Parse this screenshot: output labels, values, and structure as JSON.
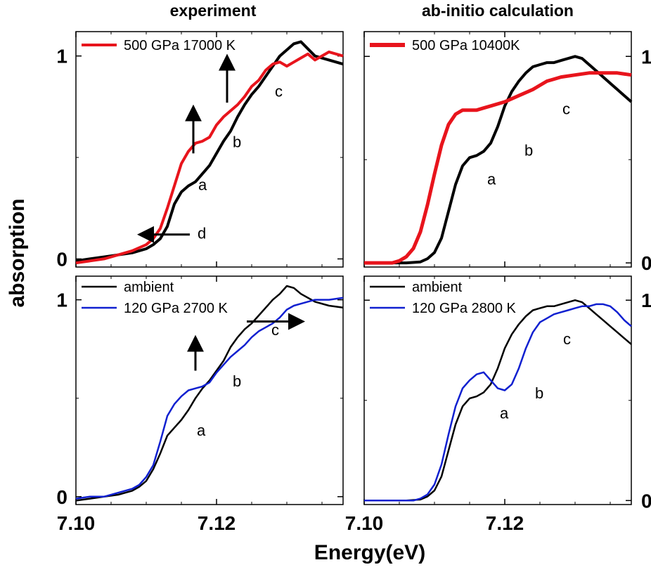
{
  "figure": {
    "col_titles": [
      "experiment",
      "ab-initio calculation"
    ],
    "ylabel": "absorption",
    "xlabel": "Energy(eV)",
    "x_ticks": [
      "7.10",
      "7.12"
    ],
    "y_ticks": [
      "0",
      "1"
    ]
  },
  "colors": {
    "black": "#000000",
    "red": "#e8141c",
    "blue": "#1020d0"
  },
  "chart_data": [
    {
      "type": "line",
      "panel": "top-left",
      "title": "experiment",
      "xlim": [
        7.1,
        7.138
      ],
      "ylim": [
        -0.04,
        1.12
      ],
      "legend": [
        "500 GPa 17000 K"
      ],
      "series": [
        {
          "name": "",
          "color": "#000000",
          "x": [
            7.1,
            7.102,
            7.104,
            7.106,
            7.108,
            7.11,
            7.111,
            7.112,
            7.113,
            7.114,
            7.115,
            7.116,
            7.117,
            7.118,
            7.119,
            7.12,
            7.121,
            7.122,
            7.123,
            7.124,
            7.125,
            7.126,
            7.127,
            7.128,
            7.129,
            7.13,
            7.131,
            7.132,
            7.134,
            7.136,
            7.138
          ],
          "y": [
            -0.01,
            0.0,
            0.01,
            0.02,
            0.03,
            0.05,
            0.07,
            0.1,
            0.16,
            0.27,
            0.33,
            0.36,
            0.38,
            0.42,
            0.46,
            0.52,
            0.58,
            0.63,
            0.7,
            0.76,
            0.81,
            0.85,
            0.9,
            0.95,
            1.0,
            1.03,
            1.06,
            1.07,
            1.0,
            0.98,
            0.96
          ]
        },
        {
          "name": "500 GPa 17000 K",
          "color": "#e8141c",
          "x": [
            7.1,
            7.102,
            7.104,
            7.106,
            7.108,
            7.11,
            7.111,
            7.112,
            7.113,
            7.114,
            7.115,
            7.116,
            7.117,
            7.118,
            7.119,
            7.12,
            7.121,
            7.122,
            7.123,
            7.124,
            7.125,
            7.126,
            7.127,
            7.128,
            7.129,
            7.13,
            7.131,
            7.132,
            7.133,
            7.134,
            7.136,
            7.138
          ],
          "y": [
            -0.02,
            -0.01,
            0.0,
            0.02,
            0.04,
            0.07,
            0.1,
            0.15,
            0.25,
            0.36,
            0.47,
            0.53,
            0.57,
            0.58,
            0.6,
            0.66,
            0.7,
            0.73,
            0.76,
            0.8,
            0.85,
            0.88,
            0.93,
            0.96,
            0.97,
            0.95,
            0.97,
            0.99,
            1.01,
            0.98,
            1.02,
            1.0
          ]
        }
      ],
      "annotations": [
        "a",
        "b",
        "c",
        "d"
      ]
    },
    {
      "type": "line",
      "panel": "top-right",
      "title": "ab-initio calculation",
      "xlim": [
        7.1,
        7.138
      ],
      "ylim": [
        -0.02,
        1.12
      ],
      "legend": [
        "500 GPa 10400K"
      ],
      "series": [
        {
          "name": "",
          "color": "#000000",
          "x": [
            7.1,
            7.106,
            7.108,
            7.109,
            7.11,
            7.111,
            7.112,
            7.113,
            7.114,
            7.115,
            7.116,
            7.117,
            7.118,
            7.119,
            7.12,
            7.121,
            7.122,
            7.123,
            7.124,
            7.125,
            7.126,
            7.127,
            7.128,
            7.129,
            7.13,
            7.131,
            7.132,
            7.133,
            7.134,
            7.135,
            7.136,
            7.137,
            7.138
          ],
          "y": [
            0.0,
            0.0,
            0.005,
            0.02,
            0.05,
            0.12,
            0.25,
            0.38,
            0.47,
            0.51,
            0.52,
            0.54,
            0.58,
            0.66,
            0.76,
            0.83,
            0.88,
            0.92,
            0.95,
            0.96,
            0.97,
            0.97,
            0.98,
            0.99,
            1.0,
            0.99,
            0.96,
            0.93,
            0.9,
            0.87,
            0.84,
            0.81,
            0.78
          ]
        },
        {
          "name": "500 GPa 10400K",
          "color": "#e8141c",
          "x": [
            7.1,
            7.104,
            7.105,
            7.106,
            7.107,
            7.108,
            7.109,
            7.11,
            7.111,
            7.112,
            7.113,
            7.114,
            7.115,
            7.116,
            7.117,
            7.118,
            7.12,
            7.122,
            7.124,
            7.125,
            7.126,
            7.127,
            7.128,
            7.13,
            7.132,
            7.134,
            7.136,
            7.138
          ],
          "y": [
            0.0,
            0.0,
            0.01,
            0.03,
            0.07,
            0.15,
            0.28,
            0.43,
            0.57,
            0.67,
            0.72,
            0.74,
            0.74,
            0.74,
            0.75,
            0.76,
            0.78,
            0.81,
            0.84,
            0.86,
            0.88,
            0.89,
            0.9,
            0.91,
            0.92,
            0.92,
            0.92,
            0.91
          ]
        }
      ],
      "annotations": [
        "a",
        "b",
        "c"
      ]
    },
    {
      "type": "line",
      "panel": "bottom-left",
      "xlim": [
        7.1,
        7.138
      ],
      "ylim": [
        -0.04,
        1.12
      ],
      "legend": [
        "ambient",
        "120 GPa 2700 K"
      ],
      "series": [
        {
          "name": "ambient",
          "color": "#000000",
          "x": [
            7.1,
            7.102,
            7.104,
            7.106,
            7.108,
            7.109,
            7.11,
            7.111,
            7.112,
            7.113,
            7.114,
            7.115,
            7.116,
            7.117,
            7.118,
            7.119,
            7.12,
            7.121,
            7.122,
            7.123,
            7.124,
            7.125,
            7.126,
            7.127,
            7.128,
            7.129,
            7.13,
            7.131,
            7.132,
            7.134,
            7.136,
            7.138
          ],
          "y": [
            -0.02,
            -0.01,
            0.0,
            0.01,
            0.03,
            0.05,
            0.08,
            0.14,
            0.22,
            0.31,
            0.35,
            0.39,
            0.44,
            0.5,
            0.55,
            0.59,
            0.64,
            0.69,
            0.76,
            0.81,
            0.85,
            0.88,
            0.92,
            0.96,
            1.0,
            1.03,
            1.07,
            1.06,
            1.03,
            0.99,
            0.97,
            0.96
          ]
        },
        {
          "name": "120 GPa 2700 K",
          "color": "#1020d0",
          "x": [
            7.1,
            7.102,
            7.104,
            7.106,
            7.108,
            7.109,
            7.11,
            7.111,
            7.112,
            7.113,
            7.114,
            7.115,
            7.116,
            7.117,
            7.118,
            7.119,
            7.12,
            7.121,
            7.122,
            7.123,
            7.124,
            7.125,
            7.126,
            7.127,
            7.128,
            7.129,
            7.13,
            7.131,
            7.132,
            7.134,
            7.136,
            7.138
          ],
          "y": [
            -0.01,
            0.0,
            0.0,
            0.02,
            0.04,
            0.06,
            0.1,
            0.16,
            0.28,
            0.41,
            0.47,
            0.51,
            0.54,
            0.55,
            0.56,
            0.58,
            0.63,
            0.67,
            0.71,
            0.74,
            0.77,
            0.81,
            0.84,
            0.86,
            0.88,
            0.91,
            0.95,
            0.97,
            0.98,
            1.0,
            1.0,
            1.01
          ]
        }
      ],
      "annotations": [
        "a",
        "b",
        "c"
      ]
    },
    {
      "type": "line",
      "panel": "bottom-right",
      "xlim": [
        7.1,
        7.138
      ],
      "ylim": [
        -0.02,
        1.12
      ],
      "legend": [
        "ambient",
        "120 GPa 2800 K"
      ],
      "series": [
        {
          "name": "ambient",
          "color": "#000000",
          "x": [
            7.1,
            7.106,
            7.108,
            7.109,
            7.11,
            7.111,
            7.112,
            7.113,
            7.114,
            7.115,
            7.116,
            7.117,
            7.118,
            7.119,
            7.12,
            7.121,
            7.122,
            7.123,
            7.124,
            7.125,
            7.126,
            7.127,
            7.128,
            7.129,
            7.13,
            7.131,
            7.132,
            7.133,
            7.134,
            7.135,
            7.136,
            7.137,
            7.138
          ],
          "y": [
            0.0,
            0.0,
            0.005,
            0.02,
            0.05,
            0.12,
            0.25,
            0.38,
            0.47,
            0.51,
            0.52,
            0.54,
            0.58,
            0.66,
            0.76,
            0.83,
            0.88,
            0.92,
            0.95,
            0.96,
            0.97,
            0.97,
            0.98,
            0.99,
            1.0,
            0.99,
            0.96,
            0.93,
            0.9,
            0.87,
            0.84,
            0.81,
            0.78
          ]
        },
        {
          "name": "120 GPa 2800 K",
          "color": "#1020d0",
          "x": [
            7.1,
            7.107,
            7.108,
            7.109,
            7.11,
            7.111,
            7.112,
            7.113,
            7.114,
            7.115,
            7.116,
            7.117,
            7.118,
            7.119,
            7.12,
            7.121,
            7.122,
            7.123,
            7.124,
            7.125,
            7.126,
            7.127,
            7.128,
            7.129,
            7.13,
            7.131,
            7.132,
            7.133,
            7.134,
            7.135,
            7.136,
            7.137,
            7.138
          ],
          "y": [
            0.0,
            0.0,
            0.01,
            0.03,
            0.08,
            0.18,
            0.33,
            0.47,
            0.56,
            0.6,
            0.63,
            0.64,
            0.6,
            0.56,
            0.55,
            0.58,
            0.66,
            0.76,
            0.84,
            0.89,
            0.91,
            0.93,
            0.94,
            0.95,
            0.96,
            0.97,
            0.97,
            0.98,
            0.98,
            0.97,
            0.94,
            0.9,
            0.87
          ]
        }
      ],
      "annotations": [
        "a",
        "b",
        "c"
      ]
    }
  ]
}
